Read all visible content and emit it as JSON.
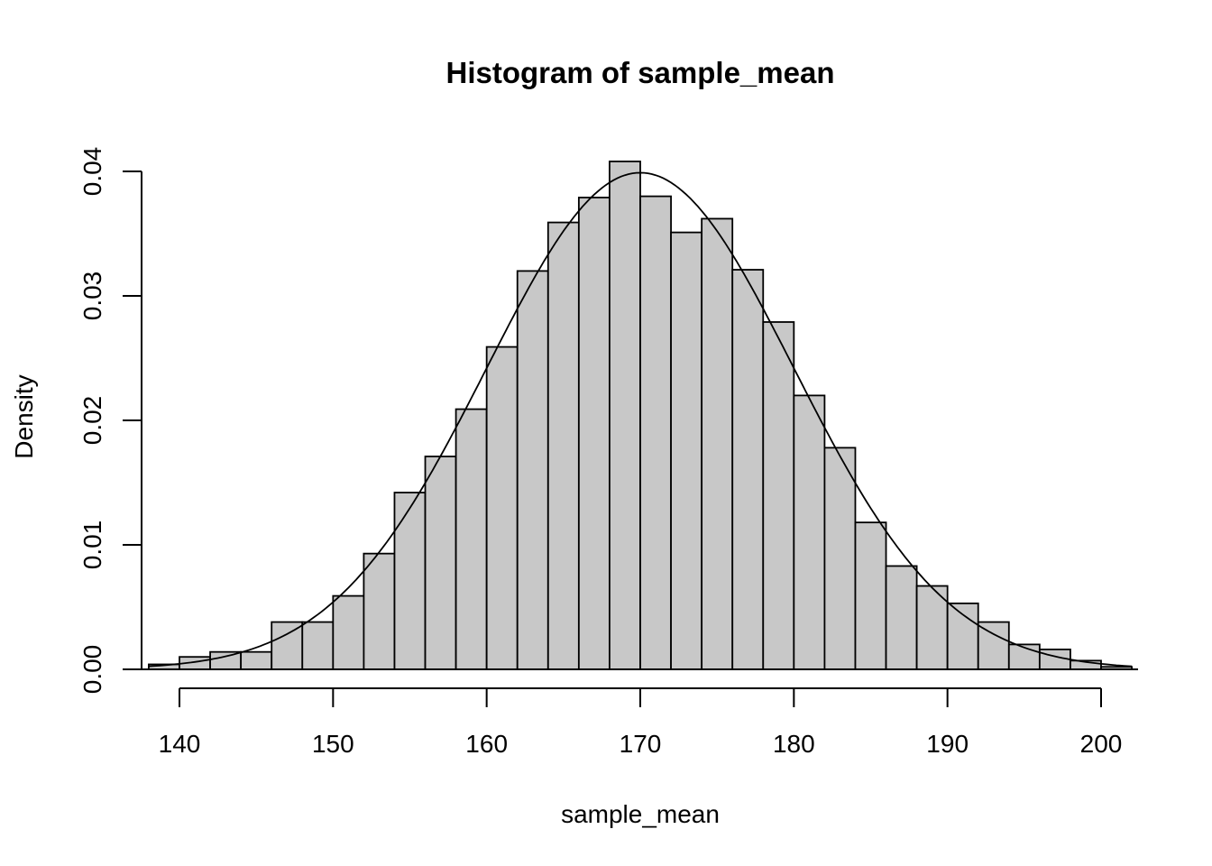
{
  "chart_data": {
    "type": "bar",
    "title": "Histogram of sample_mean",
    "xlabel": "sample_mean",
    "ylabel": "Density",
    "bin_width": 2,
    "breaks": [
      138,
      140,
      142,
      144,
      146,
      148,
      150,
      152,
      154,
      156,
      158,
      160,
      162,
      164,
      166,
      168,
      170,
      172,
      174,
      176,
      178,
      180,
      182,
      184,
      186,
      188,
      190,
      192,
      194,
      196,
      198,
      200,
      202
    ],
    "values": [
      0.0004,
      0.001,
      0.0014,
      0.0014,
      0.0038,
      0.0038,
      0.0059,
      0.0093,
      0.0142,
      0.0171,
      0.0209,
      0.0259,
      0.032,
      0.0359,
      0.0379,
      0.0408,
      0.038,
      0.0351,
      0.0362,
      0.0321,
      0.0279,
      0.022,
      0.0178,
      0.0118,
      0.0083,
      0.0067,
      0.0053,
      0.0038,
      0.002,
      0.0016,
      0.0007,
      0.0002
    ],
    "overlay_curve": {
      "type": "normal-density",
      "mean": 170,
      "sd": 10
    },
    "xticks": [
      "140",
      "150",
      "160",
      "170",
      "180",
      "190",
      "200"
    ],
    "yticks": [
      "0.00",
      "0.01",
      "0.02",
      "0.03",
      "0.04"
    ],
    "xlim": [
      137.5,
      202.5
    ],
    "ylim": [
      0,
      0.04
    ],
    "grid": false,
    "bar_fill": "#c8c8c8",
    "bar_stroke": "#000000"
  }
}
